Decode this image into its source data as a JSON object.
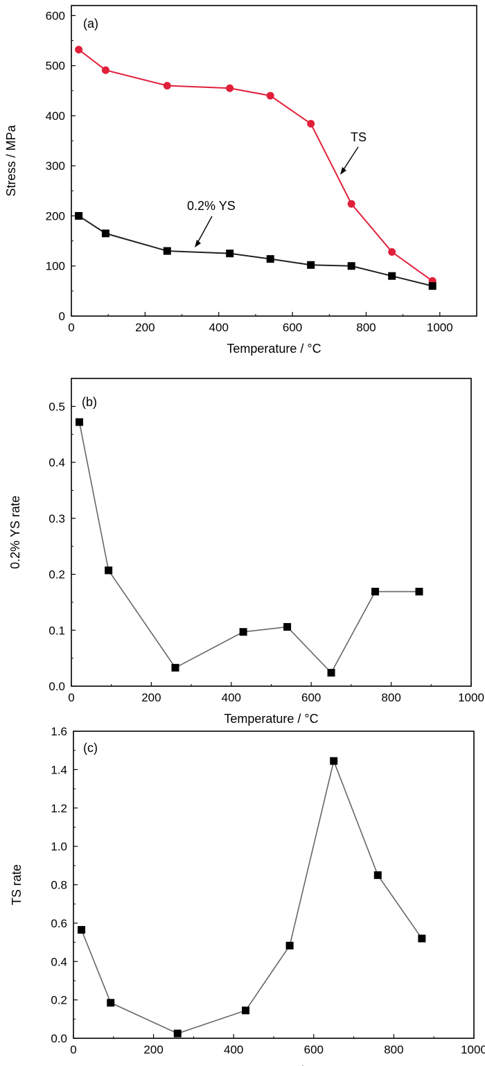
{
  "chart_data": [
    {
      "type": "line",
      "panel_label": "(a)",
      "xlabel": "Temperature / °C",
      "ylabel": "Stress / MPa",
      "xlim": [
        0,
        1100
      ],
      "ylim": [
        0,
        620
      ],
      "xticks": [
        0,
        200,
        400,
        600,
        800,
        1000
      ],
      "yticks": [
        0,
        100,
        200,
        300,
        400,
        500,
        600
      ],
      "grid": false,
      "series": [
        {
          "name": "TS",
          "color": "#e0203a",
          "marker": "circle",
          "x": [
            20,
            93,
            260,
            430,
            540,
            650,
            760,
            870,
            980
          ],
          "y": [
            532,
            491,
            460,
            455,
            440,
            384,
            224,
            128,
            70
          ]
        },
        {
          "name": "0.2% YS",
          "color": "#000000",
          "marker": "square",
          "x": [
            20,
            93,
            260,
            430,
            540,
            650,
            760,
            870,
            980
          ],
          "y": [
            200,
            165,
            130,
            125,
            114,
            102,
            100,
            80,
            60
          ]
        }
      ]
    },
    {
      "type": "line",
      "panel_label": "(b)",
      "xlabel": "Temperature / °C",
      "ylabel": "0.2% YS rate",
      "xlim": [
        0,
        1000
      ],
      "ylim": [
        0,
        0.55
      ],
      "xticks": [
        0,
        200,
        400,
        600,
        800,
        1000
      ],
      "yticks": [
        0.0,
        0.1,
        0.2,
        0.3,
        0.4,
        0.5
      ],
      "grid": false,
      "series": [
        {
          "color": "#000000",
          "marker": "square",
          "x": [
            20,
            93,
            260,
            430,
            540,
            650,
            760,
            870
          ],
          "y": [
            0.472,
            0.207,
            0.033,
            0.097,
            0.106,
            0.024,
            0.169,
            0.169
          ]
        }
      ]
    },
    {
      "type": "line",
      "panel_label": "(c)",
      "xlabel": "Temperature / °C",
      "ylabel": "TS rate",
      "xlim": [
        0,
        1000
      ],
      "ylim": [
        0,
        1.6
      ],
      "xticks": [
        0,
        200,
        400,
        600,
        800,
        1000
      ],
      "yticks": [
        0.0,
        0.2,
        0.4,
        0.6,
        0.8,
        1.0,
        1.2,
        1.4,
        1.6
      ],
      "grid": false,
      "series": [
        {
          "color": "#000000",
          "marker": "square",
          "x": [
            20,
            93,
            260,
            430,
            540,
            650,
            760,
            870
          ],
          "y": [
            0.565,
            0.185,
            0.025,
            0.145,
            0.483,
            1.445,
            0.85,
            0.52
          ]
        }
      ]
    }
  ]
}
